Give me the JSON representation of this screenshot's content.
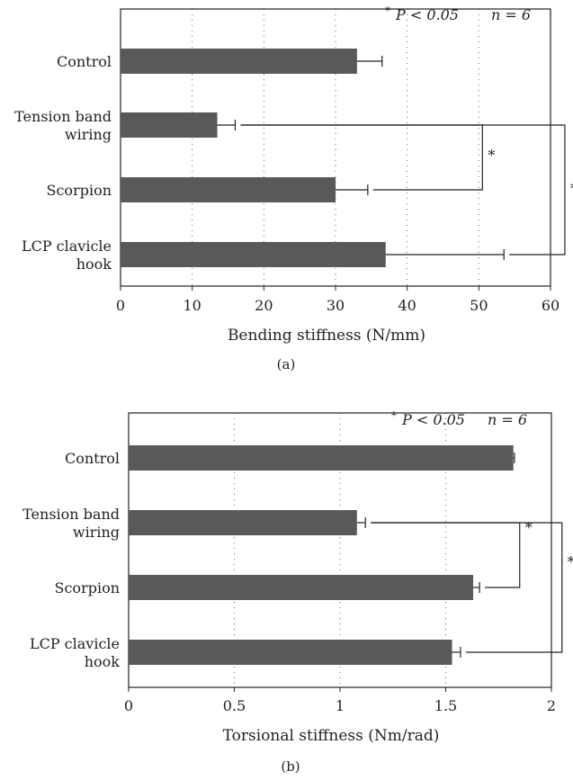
{
  "chart_data": [
    {
      "type": "bar",
      "orientation": "horizontal",
      "panel_label": "(a)",
      "categories": [
        [
          "Control"
        ],
        [
          "Tension band",
          "wiring"
        ],
        [
          "Scorpion"
        ],
        [
          "LCP clavicle",
          "hook"
        ]
      ],
      "values": [
        33,
        13.5,
        30,
        37
      ],
      "errors": [
        3.5,
        2.5,
        4.5,
        16.5
      ],
      "xlabel": "Bending stiffness (N/mm)",
      "xlim": [
        0,
        60
      ],
      "xticks": [
        "0",
        "10",
        "20",
        "30",
        "40",
        "50",
        "60"
      ],
      "grid": "vertical-dotted",
      "annotation": {
        "star": "*",
        "p_text": "P < 0.05",
        "n_text": "n = 6"
      },
      "significance": [
        {
          "from": 1,
          "to": 2,
          "label": "*",
          "bracket_x": 50.5
        },
        {
          "from": 1,
          "to": 3,
          "label": "*",
          "bracket_x": 62
        }
      ],
      "bar_color": "#595959"
    },
    {
      "type": "bar",
      "orientation": "horizontal",
      "panel_label": "(b)",
      "categories": [
        [
          "Control"
        ],
        [
          "Tension band",
          "wiring"
        ],
        [
          "Scorpion"
        ],
        [
          "LCP clavicle",
          "hook"
        ]
      ],
      "values": [
        1.82,
        1.08,
        1.63,
        1.53
      ],
      "errors": [
        0.005,
        0.04,
        0.03,
        0.04
      ],
      "xlabel": "Torsional stiffness (Nm/rad)",
      "xlim": [
        0,
        2
      ],
      "xticks": [
        "0",
        "0.5",
        "1",
        "1.5",
        "2"
      ],
      "grid": "vertical-dotted",
      "annotation": {
        "star": "*",
        "p_text": "P < 0.05",
        "n_text": "n = 6"
      },
      "significance": [
        {
          "from": 1,
          "to": 2,
          "label": "*",
          "bracket_x": 1.85
        },
        {
          "from": 1,
          "to": 3,
          "label": "*",
          "bracket_x": 2.05
        }
      ],
      "bar_color": "#595959"
    }
  ]
}
